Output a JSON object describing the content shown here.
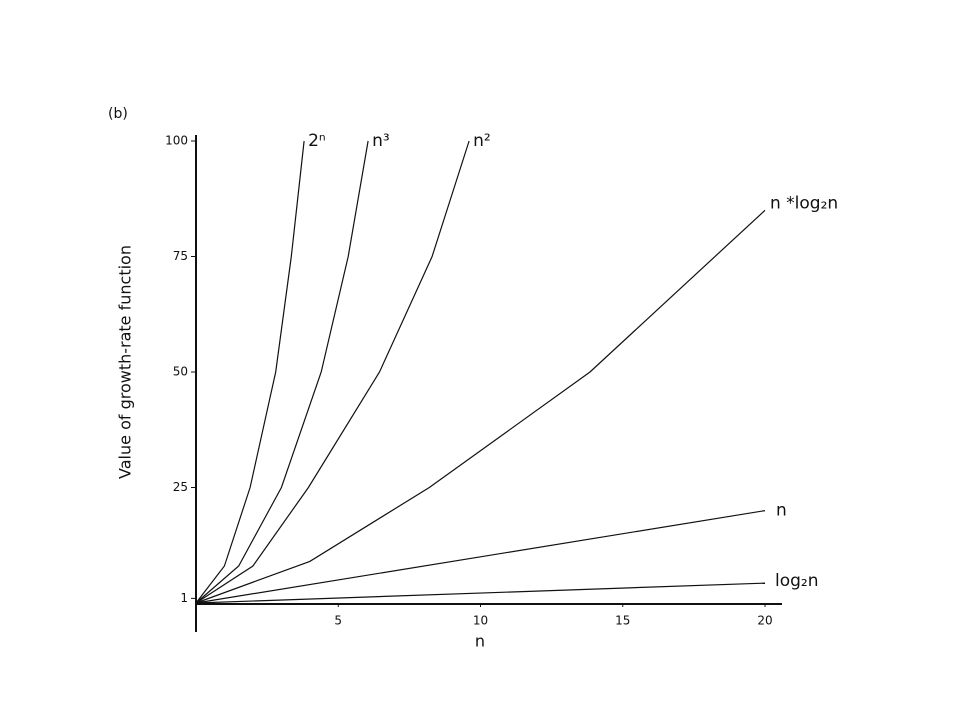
{
  "chart_data": {
    "type": "line",
    "panel_label": "(b)",
    "y_label": "Value of growth-rate function",
    "x_label": "n",
    "xlim": [
      0,
      20.6
    ],
    "xticks": [
      5,
      10,
      15,
      20
    ],
    "ylim": [
      0,
      100
    ],
    "yticks": [
      1,
      25,
      50,
      75,
      100
    ],
    "series": [
      {
        "name": "2ⁿ",
        "color": "#111111",
        "x": [
          0,
          1,
          1.9,
          2.8,
          3.35,
          3.8
        ],
        "values": [
          0,
          8,
          25,
          50,
          75,
          100
        ]
      },
      {
        "name": "n³",
        "color": "#111111",
        "x": [
          0,
          1.5,
          3,
          4.4,
          5.35,
          6.05
        ],
        "values": [
          0,
          8,
          25,
          50,
          75,
          100
        ]
      },
      {
        "name": "n²",
        "color": "#111111",
        "x": [
          0,
          2,
          3.95,
          6.45,
          8.3,
          9.6
        ],
        "values": [
          0,
          8,
          25,
          50,
          75,
          100
        ]
      },
      {
        "name": "n *log₂n",
        "color": "#111111",
        "x": [
          0,
          4,
          8.2,
          13.85,
          20
        ],
        "values": [
          0,
          9,
          25,
          50,
          85
        ]
      },
      {
        "name": "n",
        "color": "#111111",
        "x": [
          0,
          20
        ],
        "values": [
          0,
          20
        ]
      },
      {
        "name": "log₂n",
        "color": "#111111",
        "x": [
          0,
          20
        ],
        "values": [
          0,
          4.3
        ]
      }
    ]
  }
}
